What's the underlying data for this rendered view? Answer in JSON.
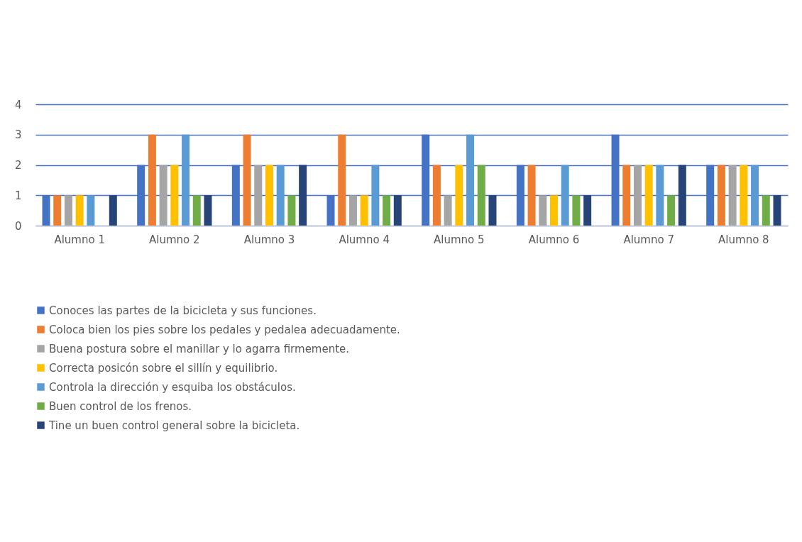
{
  "chart_data": {
    "type": "bar",
    "categories": [
      "Alumno 1",
      "Alumno 2",
      "Alumno 3",
      "Alumno 4",
      "Alumno 5",
      "Alumno 6",
      "Alumno 7",
      "Alumno 8"
    ],
    "series": [
      {
        "name": "Conoces las partes de la bicicleta y sus funciones.",
        "color": "#4472c4",
        "values": [
          1,
          2,
          2,
          1,
          3,
          2,
          3,
          2
        ]
      },
      {
        "name": "Coloca bien los pies sobre los pedales y pedalea adecuadamente.",
        "color": "#ed7d31",
        "values": [
          1,
          3,
          3,
          3,
          2,
          2,
          2,
          2
        ]
      },
      {
        "name": "Buena postura sobre el manillar y lo agarra firmemente.",
        "color": "#a5a5a5",
        "values": [
          1,
          2,
          2,
          1,
          1,
          1,
          2,
          2
        ]
      },
      {
        "name": "Correcta posicón sobre el sillín y equilibrio.",
        "color": "#ffc000",
        "values": [
          1,
          2,
          2,
          1,
          2,
          1,
          2,
          2
        ]
      },
      {
        "name": "Controla la dirección y esquiba los obstáculos.",
        "color": "#5b9bd5",
        "values": [
          1,
          3,
          2,
          2,
          3,
          2,
          2,
          2
        ]
      },
      {
        "name": "Buen control de los frenos.",
        "color": "#70ad47",
        "values": [
          0,
          1,
          1,
          1,
          2,
          1,
          1,
          1
        ]
      },
      {
        "name": "Tine un buen control general sobre la bicicleta.",
        "color": "#264478",
        "values": [
          1,
          1,
          2,
          1,
          1,
          1,
          2,
          1
        ]
      }
    ],
    "ylim": [
      0,
      4
    ],
    "yticks": [
      0,
      1,
      2,
      3,
      4
    ],
    "grid": "y",
    "legend": "bottom"
  }
}
